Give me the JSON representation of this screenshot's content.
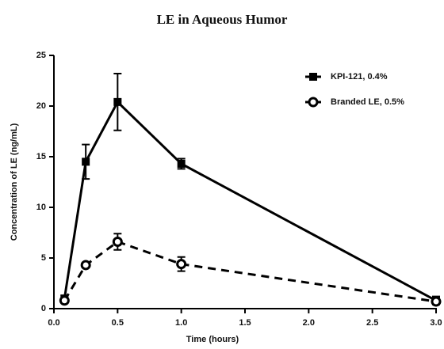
{
  "chart_data": {
    "type": "line",
    "title": "LE in Aqueous Humor",
    "xlabel": "Time (hours)",
    "ylabel": "Concentration of LE (ng/mL)",
    "x": [
      0.083,
      0.25,
      0.5,
      1.0,
      3.0
    ],
    "series": [
      {
        "name": "KPI-121, 0.4%",
        "color": "#000000",
        "line_style": "solid",
        "marker": "square",
        "values": [
          1.0,
          14.5,
          20.4,
          14.3,
          0.8
        ],
        "errors": [
          0.3,
          1.7,
          2.8,
          0.5,
          0.4
        ]
      },
      {
        "name": "Branded LE, 0.5%",
        "color": "#000000",
        "line_style": "dashed",
        "marker": "circle-open",
        "values": [
          0.8,
          4.3,
          6.6,
          4.4,
          0.7
        ],
        "errors": [
          0.2,
          0.2,
          0.8,
          0.7,
          0.2
        ]
      }
    ],
    "xlim": [
      0,
      3
    ],
    "xticks": [
      {
        "value": 0,
        "label": "0.0"
      },
      0.5,
      {
        "value": 1,
        "label": "1.0"
      },
      1.5,
      {
        "value": 2,
        "label": "2.0"
      },
      2.5,
      {
        "value": 3,
        "label": "3.0"
      }
    ],
    "ylim": [
      0,
      25
    ],
    "yticks": [
      0,
      5,
      10,
      15,
      20,
      25
    ],
    "grid": false,
    "legend": "upper right"
  }
}
